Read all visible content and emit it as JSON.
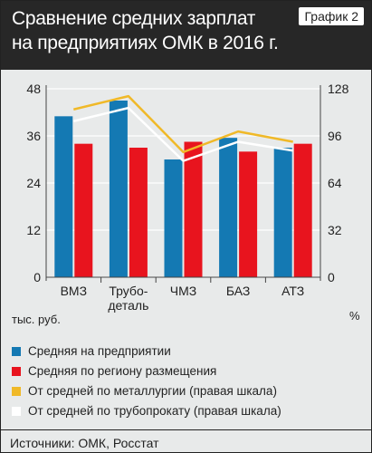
{
  "header": {
    "title_line1": "Сравнение средних зарплат",
    "title_line2": "на предприятиях ОМК в 2016 г.",
    "chart_number": "График 2"
  },
  "units": {
    "left": "тыс. руб.",
    "right": "%"
  },
  "legend": [
    {
      "label": "Средняя на предприятии",
      "color": "#1479b3"
    },
    {
      "label": "Средняя по региону размещения",
      "color": "#e8141e"
    },
    {
      "label": "От средней по металлургии (правая шкала)",
      "color": "#f0b928"
    },
    {
      "label": "От средней по трубопрокату (правая шкала)",
      "color": "#ffffff"
    }
  ],
  "source": "Источники: ОМК, Росстат",
  "chart_data": {
    "type": "bar",
    "categories": [
      "ВМЗ",
      "Трубо-\nдеталь",
      "ЧМЗ",
      "БАЗ",
      "АТЗ"
    ],
    "left_axis": {
      "ylim": [
        0,
        48
      ],
      "ticks": [
        0,
        12,
        24,
        36,
        48
      ],
      "label": "тыс. руб."
    },
    "right_axis": {
      "ylim": [
        0,
        128
      ],
      "ticks": [
        0,
        32,
        64,
        96,
        128
      ],
      "label": "%"
    },
    "series": [
      {
        "name": "Средняя на предприятии",
        "type": "bar",
        "axis": "left",
        "color": "#1479b3",
        "values": [
          41,
          45,
          30,
          35.5,
          33
        ]
      },
      {
        "name": "Средняя по региону размещения",
        "type": "bar",
        "axis": "left",
        "color": "#e8141e",
        "values": [
          34,
          33,
          34.5,
          32,
          34
        ]
      },
      {
        "name": "От средней по металлургии (правая шкала)",
        "type": "line",
        "axis": "right",
        "color": "#f0b928",
        "values": [
          114,
          123,
          85,
          99,
          92
        ]
      },
      {
        "name": "От средней по трубопрокату (правая шкала)",
        "type": "line",
        "axis": "right",
        "color": "#ffffff",
        "values": [
          106,
          115,
          79,
          92,
          86
        ]
      }
    ],
    "grid": true
  }
}
